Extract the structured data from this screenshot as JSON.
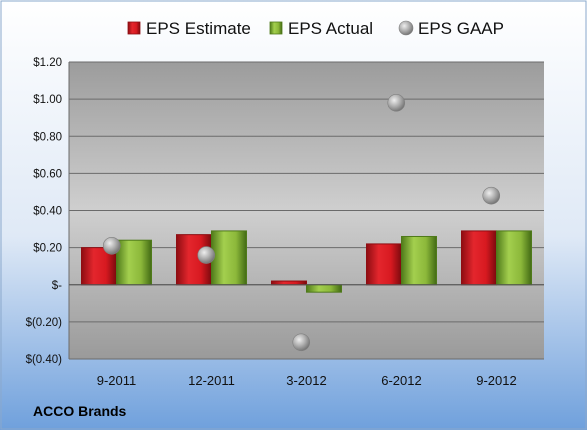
{
  "company": "ACCO Brands",
  "colors": {
    "estimate": "#d71920",
    "estimate_dark": "#8e0d12",
    "actual": "#8cb83a",
    "actual_dark": "#4f7a1a",
    "gaap": "#b4b4b4",
    "background_top": "#ffffff",
    "background_bottom": "#6fa0dc",
    "plot_area": "#bdbdbd"
  },
  "chart_data": {
    "type": "bar",
    "categories": [
      "9-2011",
      "12-2011",
      "3-2012",
      "6-2012",
      "9-2012"
    ],
    "series": [
      {
        "name": "EPS Estimate",
        "kind": "bar",
        "color": "#d71920",
        "values": [
          0.2,
          0.27,
          0.02,
          0.22,
          0.29
        ]
      },
      {
        "name": "EPS Actual",
        "kind": "bar",
        "color": "#8cb83a",
        "values": [
          0.24,
          0.29,
          -0.04,
          0.26,
          0.29
        ]
      },
      {
        "name": "EPS GAAP",
        "kind": "scatter",
        "color": "#b4b4b4",
        "values": [
          0.21,
          0.16,
          -0.31,
          0.98,
          0.48
        ]
      }
    ],
    "yticks": [
      {
        "value": 1.2,
        "label": "$1.20"
      },
      {
        "value": 1.0,
        "label": "$1.00"
      },
      {
        "value": 0.8,
        "label": "$0.80"
      },
      {
        "value": 0.6,
        "label": "$0.60"
      },
      {
        "value": 0.4,
        "label": "$0.40"
      },
      {
        "value": 0.2,
        "label": "$0.20"
      },
      {
        "value": 0.0,
        "label": "$-"
      },
      {
        "value": -0.2,
        "label": "$(0.20)"
      },
      {
        "value": -0.4,
        "label": "$(0.40)"
      }
    ],
    "ylim": [
      -0.4,
      1.2
    ],
    "grid": true,
    "legend_position": "top"
  }
}
